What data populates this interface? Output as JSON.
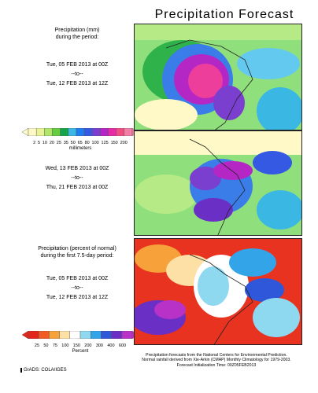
{
  "title": "Precipitation Forecast",
  "panel1": {
    "heading": [
      "Precipitation (mm)",
      "during the period:"
    ],
    "start": "Tue, 05 FEB 2013 at 00Z",
    "to": "--to--",
    "end": "Tue, 12 FEB 2013 at 12Z"
  },
  "colorbar1": {
    "ticks": [
      "2",
      "5",
      "10",
      "20",
      "25",
      "35",
      "50",
      "65",
      "80",
      "100",
      "125",
      "150",
      "200"
    ],
    "unit": "millimeters",
    "colors": [
      "#fff9c7",
      "#e7f396",
      "#b1e56a",
      "#66cd3f",
      "#16a44a",
      "#3bb7e3",
      "#1d7ef2",
      "#3559e2",
      "#7b3fd0",
      "#b526c7",
      "#e82aa8",
      "#f14f84",
      "#f37fa7"
    ]
  },
  "panel2": {
    "start": "Wed, 13 FEB 2013 at 00Z",
    "to": "--to--",
    "end": "Thu, 21 FEB 2013 at 00Z"
  },
  "panel3": {
    "heading": [
      "Precipitation (percent of normal)",
      "during the first 7.5-day period:"
    ],
    "start": "Tue, 05 FEB 2013 at 00Z",
    "to": "--to--",
    "end": "Tue, 12 FEB 2013 at 12Z"
  },
  "colorbar2": {
    "ticks": [
      "25",
      "50",
      "75",
      "100",
      "150",
      "200",
      "300",
      "400",
      "600"
    ],
    "unit": "Percent",
    "colors": [
      "#e2261c",
      "#f15c25",
      "#f6a13a",
      "#fde0a5",
      "#ffffff",
      "#8ed8f0",
      "#34a4e9",
      "#2e57d9",
      "#6a2fc4",
      "#b932c8"
    ]
  },
  "footer": [
    "Precipitation forecasts from the National Centers for Environmental Prediction.",
    "Normal rainfall derived from Xie-Arkin (CMAP) Monthly Climatology for 1979-2003.",
    "Forecast Initialization Time: 00Z05FEB2013"
  ],
  "credit": "GrADS: COLA/IGES"
}
